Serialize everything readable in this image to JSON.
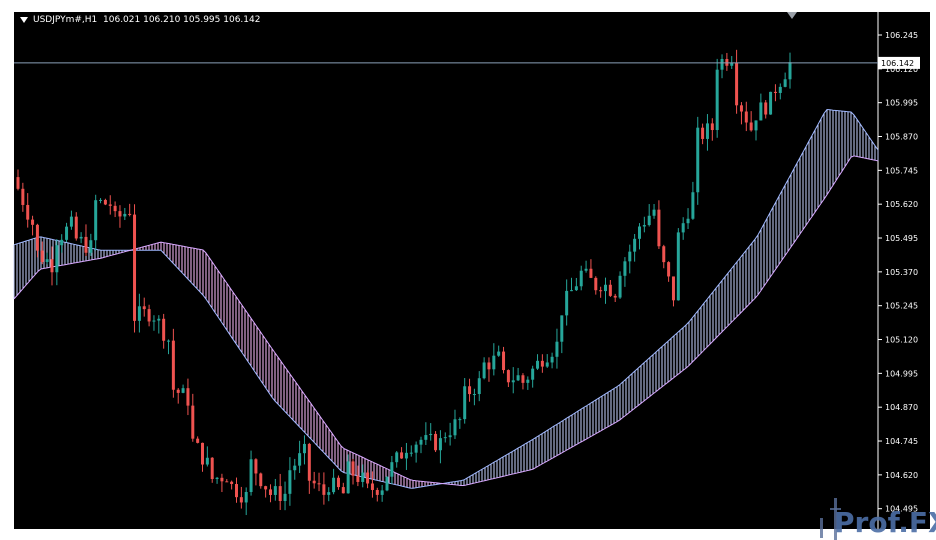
{
  "header": {
    "symbol": "USDJPYm#,H1",
    "ohlc": "106.021 106.210 105.995 106.142"
  },
  "watermark": {
    "text": "Prof.FX"
  },
  "colors": {
    "background": "#000000",
    "axis": "#ffffff",
    "bull": "#26a69a",
    "bear": "#ef5350",
    "cloud_bear_edge": "#d8a8ff",
    "cloud_bull_edge": "#a0b8ff",
    "cloud_bear_fill": "#ffc0ff",
    "cloud_bull_fill": "#c8d4ff",
    "price_line": "#8aa0b8"
  },
  "chart_data": {
    "type": "candlestick",
    "symbol": "USDJPYm#",
    "timeframe": "H1",
    "last_price": "106.142",
    "y_axis": {
      "ylim": [
        104.42,
        106.33
      ],
      "ticks": [
        "106.245",
        "106.120",
        "105.995",
        "105.870",
        "105.745",
        "105.620",
        "105.495",
        "105.370",
        "105.245",
        "105.120",
        "104.995",
        "104.870",
        "104.745",
        "104.620",
        "104.495"
      ]
    },
    "candles_anchor": [
      [
        105.72,
        105.55
      ],
      [
        105.45,
        105.4
      ],
      [
        105.48,
        105.54
      ],
      [
        105.5,
        105.46
      ],
      [
        105.63,
        105.62
      ],
      [
        105.55,
        105.6
      ],
      [
        105.2,
        105.22
      ],
      [
        105.24,
        105.12
      ],
      [
        104.95,
        104.9
      ],
      [
        104.77,
        104.66
      ],
      [
        104.6,
        104.62
      ],
      [
        104.59,
        104.54
      ],
      [
        104.69,
        104.58
      ],
      [
        104.55,
        104.55
      ],
      [
        104.62,
        104.7
      ],
      [
        104.62,
        104.55
      ],
      [
        104.6,
        104.55
      ],
      [
        104.65,
        104.6
      ],
      [
        104.56,
        104.58
      ],
      [
        104.6,
        104.7
      ],
      [
        104.72,
        104.75
      ],
      [
        104.74,
        104.74
      ],
      [
        104.76,
        104.82
      ],
      [
        104.9,
        104.96
      ],
      [
        105.02,
        105.05
      ],
      [
        104.98,
        104.98
      ],
      [
        104.94,
        105.03
      ],
      [
        105.04,
        105.1
      ],
      [
        105.2,
        105.33
      ],
      [
        105.38,
        105.32
      ],
      [
        105.34,
        105.3
      ],
      [
        105.35,
        105.48
      ],
      [
        105.52,
        105.6
      ],
      [
        105.5,
        105.28
      ],
      [
        105.45,
        105.65
      ],
      [
        105.86,
        105.9
      ],
      [
        106.13,
        106.17
      ],
      [
        106.06,
        105.9
      ],
      [
        105.94,
        106.0
      ],
      [
        106.02,
        106.14
      ]
    ],
    "cloud_anchor": {
      "x_frac": [
        0,
        0.03,
        0.1,
        0.17,
        0.22,
        0.3,
        0.38,
        0.46,
        0.52,
        0.6,
        0.7,
        0.78,
        0.86,
        0.94,
        0.97,
        1.0
      ],
      "span_a": [
        105.47,
        105.5,
        105.45,
        105.45,
        105.28,
        104.9,
        104.63,
        104.57,
        104.6,
        104.75,
        104.95,
        105.18,
        105.5,
        105.97,
        105.96,
        105.82
      ],
      "span_b": [
        105.27,
        105.38,
        105.42,
        105.48,
        105.45,
        105.08,
        104.72,
        104.6,
        104.58,
        104.64,
        104.82,
        105.02,
        105.28,
        105.65,
        105.8,
        105.78
      ]
    }
  }
}
